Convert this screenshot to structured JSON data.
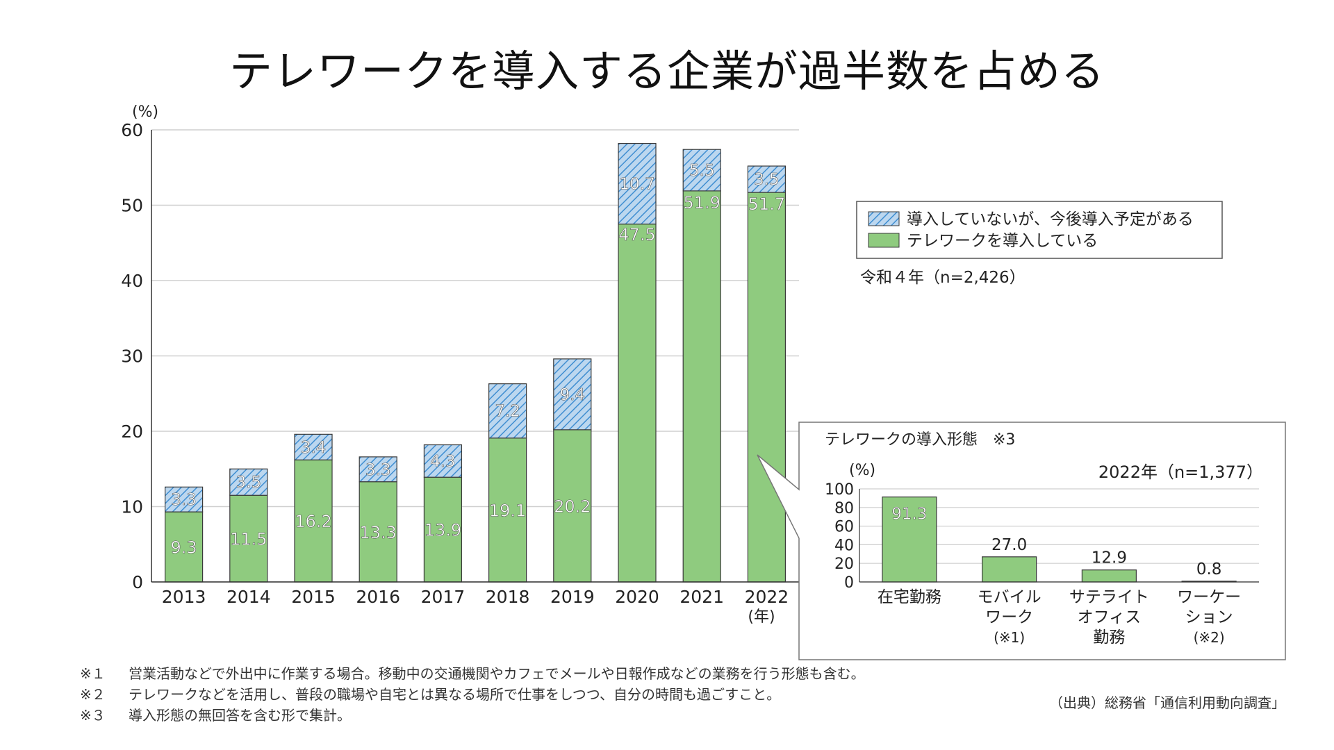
{
  "title": "テレワークを導入する企業が過半数を占める",
  "colors": {
    "implemented": "#8fcb7f",
    "planned_fill": "#bcd7ef",
    "planned_stripe": "#3f8ed1",
    "bar_stroke": "#3a3a3a",
    "grid": "#cfcfcf"
  },
  "chart_data": [
    {
      "type": "bar",
      "stacked": true,
      "title": "",
      "xlabel": "(年)",
      "ylabel": "(%)",
      "ylim": [
        0,
        60
      ],
      "yticks": [
        0,
        10,
        20,
        30,
        40,
        50,
        60
      ],
      "categories": [
        "2013",
        "2014",
        "2015",
        "2016",
        "2017",
        "2018",
        "2019",
        "2020",
        "2021",
        "2022"
      ],
      "series": [
        {
          "name": "テレワークを導入している",
          "values": [
            9.3,
            11.5,
            16.2,
            13.3,
            13.9,
            19.1,
            20.2,
            47.5,
            51.9,
            51.7
          ]
        },
        {
          "name": "導入していないが、今後導入予定がある",
          "values": [
            3.3,
            3.5,
            3.4,
            3.3,
            4.3,
            7.2,
            9.4,
            10.7,
            5.5,
            3.5
          ]
        }
      ],
      "legend": [
        "導入していないが、今後導入予定がある",
        "テレワークを導入している"
      ],
      "legend_position": "right",
      "annotation": "令和４年（n=2,426）"
    },
    {
      "type": "bar",
      "title": "テレワークの導入形態　※3",
      "subtitle": "2022年（n=1,377）",
      "ylabel": "(%)",
      "ylim": [
        0,
        100
      ],
      "yticks": [
        0,
        20,
        40,
        60,
        80,
        100
      ],
      "categories": [
        "在宅勤務",
        "モバイルワーク（※1）",
        "サテライトオフィス勤務",
        "ワーケーション（※2）"
      ],
      "category_lines": [
        [
          "在宅勤務"
        ],
        [
          "モバイル",
          "ワーク",
          "(※1)"
        ],
        [
          "サテライト",
          "オフィス",
          "勤務"
        ],
        [
          "ワーケー",
          "ション",
          "(※2)"
        ]
      ],
      "values": [
        91.3,
        27.0,
        12.9,
        0.8
      ]
    }
  ],
  "notes": [
    {
      "mark": "※１",
      "text": "営業活動などで外出中に作業する場合。移動中の交通機関やカフェでメールや日報作成などの業務を行う形態も含む。"
    },
    {
      "mark": "※２",
      "text": "テレワークなどを活用し、普段の職場や自宅とは異なる場所で仕事をしつつ、自分の時間も過ごすこと。"
    },
    {
      "mark": "※３",
      "text": "導入形態の無回答を含む形で集計。"
    }
  ],
  "source": "（出典）総務省「通信利用動向調査」"
}
